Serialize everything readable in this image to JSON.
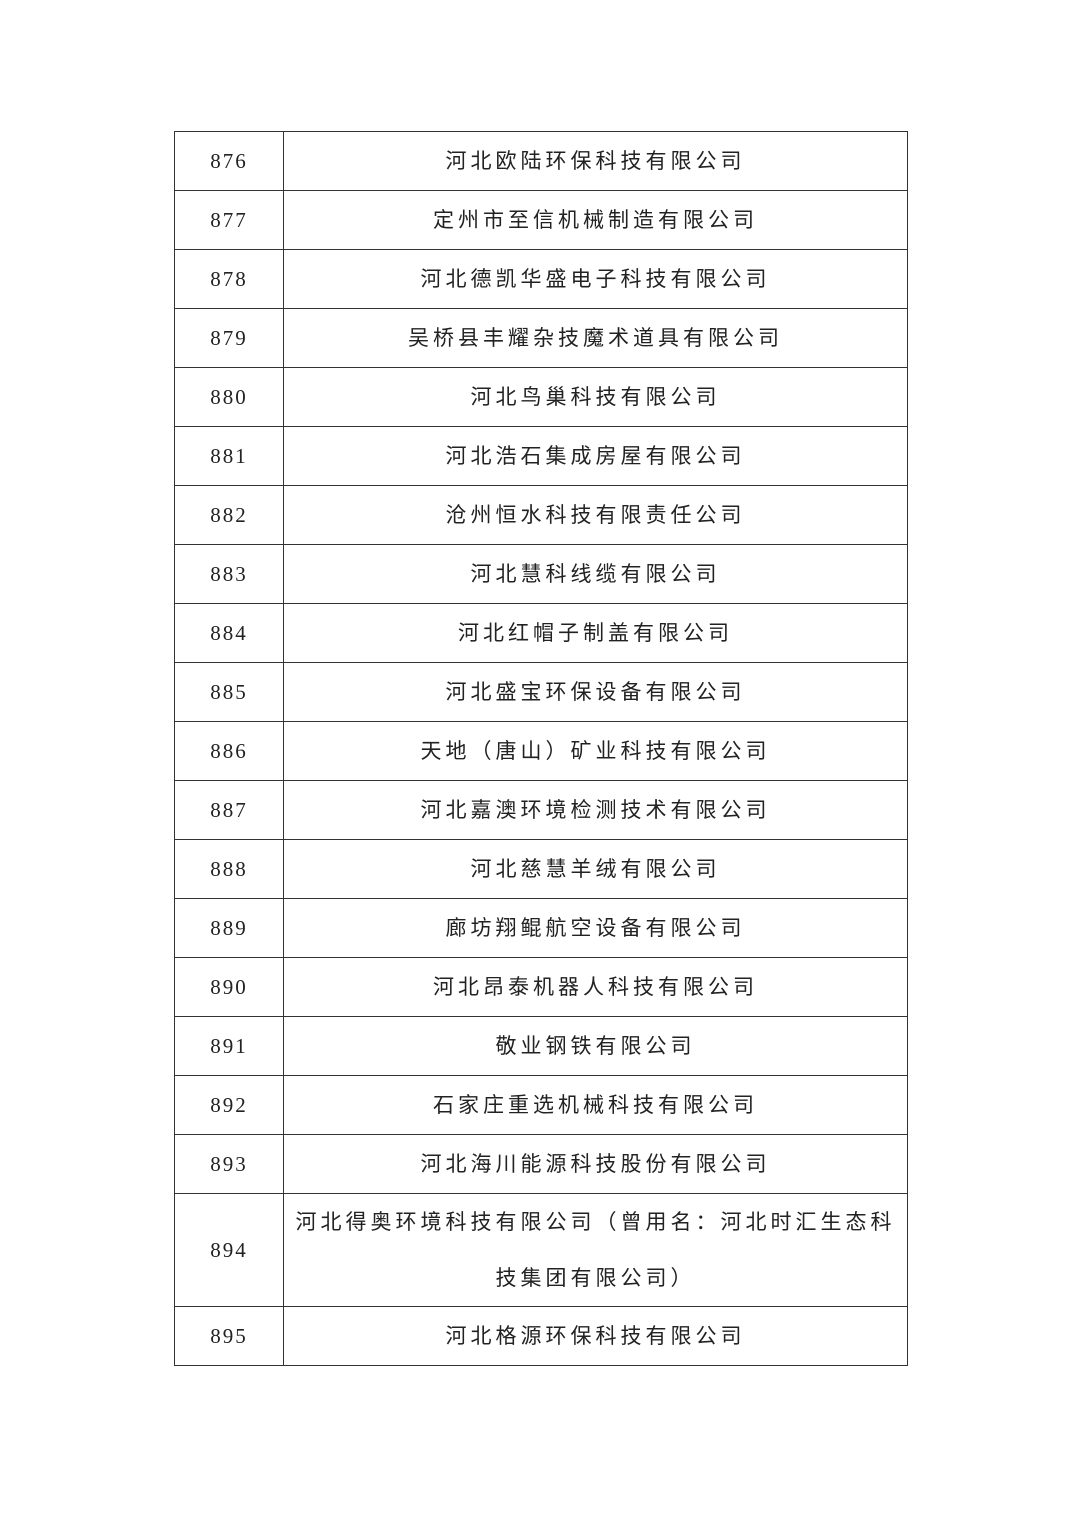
{
  "table": {
    "rows": [
      {
        "no": "876",
        "name": "河北欧陆环保科技有限公司"
      },
      {
        "no": "877",
        "name": "定州市至信机械制造有限公司"
      },
      {
        "no": "878",
        "name": "河北德凯华盛电子科技有限公司"
      },
      {
        "no": "879",
        "name": "吴桥县丰耀杂技魔术道具有限公司"
      },
      {
        "no": "880",
        "name": "河北鸟巢科技有限公司"
      },
      {
        "no": "881",
        "name": "河北浩石集成房屋有限公司"
      },
      {
        "no": "882",
        "name": "沧州恒水科技有限责任公司"
      },
      {
        "no": "883",
        "name": "河北慧科线缆有限公司"
      },
      {
        "no": "884",
        "name": "河北红帽子制盖有限公司"
      },
      {
        "no": "885",
        "name": "河北盛宝环保设备有限公司"
      },
      {
        "no": "886",
        "name": "天地（唐山）矿业科技有限公司"
      },
      {
        "no": "887",
        "name": "河北嘉澳环境检测技术有限公司"
      },
      {
        "no": "888",
        "name": "河北慈慧羊绒有限公司"
      },
      {
        "no": "889",
        "name": "廊坊翔鲲航空设备有限公司"
      },
      {
        "no": "890",
        "name": "河北昂泰机器人科技有限公司"
      },
      {
        "no": "891",
        "name": "敬业钢铁有限公司"
      },
      {
        "no": "892",
        "name": "石家庄重选机械科技有限公司"
      },
      {
        "no": "893",
        "name": "河北海川能源科技股份有限公司"
      },
      {
        "no": "894",
        "name": "河北得奥环境科技有限公司（曾用名：河北时汇生态科技集团有限公司）"
      },
      {
        "no": "895",
        "name": "河北格源环保科技有限公司"
      }
    ]
  }
}
